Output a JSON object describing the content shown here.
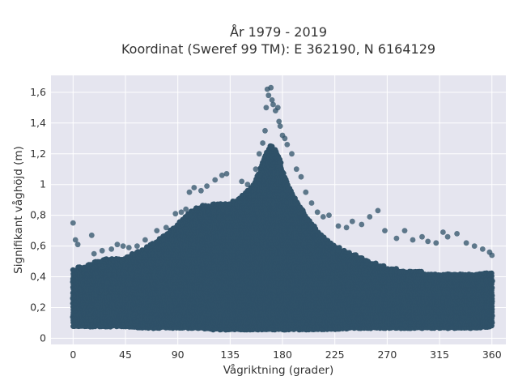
{
  "chart_data": {
    "type": "scatter",
    "title_line1": "År 1979 - 2019",
    "title_line2": "Koordinat (Sweref 99 TM): E 362190, N 6164129",
    "xlabel": "Vågriktning (grader)",
    "ylabel": "Signifikant våghöjd (m)",
    "xlim": [
      -19,
      372
    ],
    "ylim": [
      -0.04,
      1.71
    ],
    "xticks": [
      0,
      45,
      90,
      135,
      180,
      225,
      270,
      315,
      360
    ],
    "xtick_labels": [
      "0",
      "45",
      "90",
      "135",
      "180",
      "225",
      "270",
      "315",
      "360"
    ],
    "yticks": [
      0,
      0.2,
      0.4,
      0.6,
      0.8,
      1.0,
      1.2,
      1.4,
      1.6
    ],
    "ytick_labels": [
      "0",
      "0,2",
      "0,4",
      "0,6",
      "0,8",
      "1",
      "1,2",
      "1,4",
      "1,6"
    ],
    "grid": true,
    "marker_color": "#2f5168",
    "background_color": "#e5e5ef",
    "envelope": {
      "x": [
        0,
        10,
        20,
        30,
        45,
        60,
        75,
        90,
        100,
        110,
        120,
        135,
        145,
        155,
        160,
        165,
        170,
        175,
        180,
        185,
        190,
        200,
        210,
        225,
        240,
        255,
        270,
        285,
        300,
        315,
        330,
        345,
        360
      ],
      "ymin": [
        0.08,
        0.08,
        0.08,
        0.08,
        0.08,
        0.07,
        0.07,
        0.07,
        0.07,
        0.07,
        0.06,
        0.06,
        0.06,
        0.06,
        0.06,
        0.06,
        0.06,
        0.06,
        0.06,
        0.06,
        0.06,
        0.06,
        0.06,
        0.06,
        0.07,
        0.07,
        0.07,
        0.07,
        0.07,
        0.07,
        0.07,
        0.07,
        0.08
      ],
      "ymax": [
        0.45,
        0.47,
        0.5,
        0.52,
        0.53,
        0.58,
        0.65,
        0.74,
        0.82,
        0.86,
        0.87,
        0.88,
        0.92,
        1.0,
        1.08,
        1.2,
        1.26,
        1.22,
        1.1,
        1.0,
        0.92,
        0.8,
        0.7,
        0.6,
        0.55,
        0.5,
        0.46,
        0.44,
        0.43,
        0.43,
        0.43,
        0.43,
        0.43
      ]
    },
    "outliers": [
      [
        0,
        0.75
      ],
      [
        2,
        0.64
      ],
      [
        4,
        0.61
      ],
      [
        16,
        0.67
      ],
      [
        18,
        0.55
      ],
      [
        25,
        0.57
      ],
      [
        33,
        0.58
      ],
      [
        38,
        0.61
      ],
      [
        43,
        0.6
      ],
      [
        48,
        0.59
      ],
      [
        55,
        0.6
      ],
      [
        62,
        0.64
      ],
      [
        72,
        0.7
      ],
      [
        80,
        0.72
      ],
      [
        88,
        0.81
      ],
      [
        93,
        0.82
      ],
      [
        97,
        0.84
      ],
      [
        100,
        0.95
      ],
      [
        104,
        0.98
      ],
      [
        110,
        0.96
      ],
      [
        115,
        0.99
      ],
      [
        122,
        1.03
      ],
      [
        128,
        1.06
      ],
      [
        132,
        1.07
      ],
      [
        145,
        1.02
      ],
      [
        150,
        1.0
      ],
      [
        157,
        1.1
      ],
      [
        160,
        1.2
      ],
      [
        163,
        1.27
      ],
      [
        165,
        1.35
      ],
      [
        166,
        1.5
      ],
      [
        167,
        1.62
      ],
      [
        168,
        1.58
      ],
      [
        170,
        1.63
      ],
      [
        171,
        1.55
      ],
      [
        172,
        1.52
      ],
      [
        174,
        1.48
      ],
      [
        176,
        1.5
      ],
      [
        177,
        1.41
      ],
      [
        178,
        1.38
      ],
      [
        180,
        1.32
      ],
      [
        182,
        1.3
      ],
      [
        184,
        1.26
      ],
      [
        188,
        1.2
      ],
      [
        192,
        1.1
      ],
      [
        196,
        1.05
      ],
      [
        200,
        0.95
      ],
      [
        205,
        0.88
      ],
      [
        210,
        0.82
      ],
      [
        215,
        0.79
      ],
      [
        220,
        0.8
      ],
      [
        228,
        0.73
      ],
      [
        235,
        0.72
      ],
      [
        240,
        0.76
      ],
      [
        248,
        0.74
      ],
      [
        255,
        0.79
      ],
      [
        262,
        0.83
      ],
      [
        268,
        0.7
      ],
      [
        278,
        0.65
      ],
      [
        285,
        0.7
      ],
      [
        292,
        0.64
      ],
      [
        300,
        0.66
      ],
      [
        305,
        0.63
      ],
      [
        312,
        0.62
      ],
      [
        318,
        0.69
      ],
      [
        322,
        0.66
      ],
      [
        330,
        0.68
      ],
      [
        338,
        0.62
      ],
      [
        345,
        0.6
      ],
      [
        352,
        0.58
      ],
      [
        358,
        0.56
      ],
      [
        360,
        0.54
      ]
    ]
  }
}
